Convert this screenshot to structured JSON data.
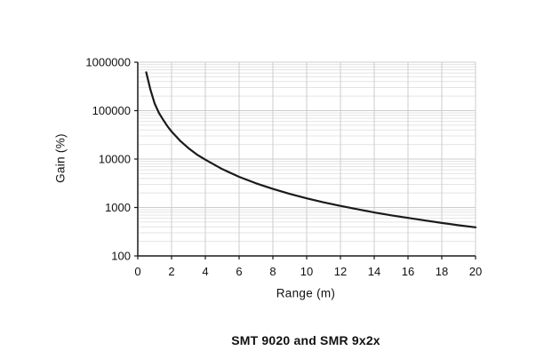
{
  "figure": {
    "title": "SMT 9020 and SMR 9x2x"
  },
  "chart_data": {
    "type": "line",
    "title": "SMT 9020 and SMR 9x2x",
    "xlabel": "Range (m)",
    "ylabel": "Gain (%)",
    "xlim": [
      0,
      20
    ],
    "ylim": [
      100,
      1000000
    ],
    "x_scale": "linear",
    "y_scale": "log",
    "x_ticks": [
      0,
      2,
      4,
      6,
      8,
      10,
      12,
      14,
      16,
      18,
      20
    ],
    "x_tick_labels": [
      "0",
      "2",
      "4",
      "6",
      "8",
      "10",
      "12",
      "14",
      "16",
      "18",
      "20"
    ],
    "y_ticks": [
      100,
      1000,
      10000,
      100000,
      1000000
    ],
    "y_tick_labels": [
      "100",
      "1000",
      "10000",
      "100000",
      "1000000"
    ],
    "grid": "major vertical every 2 m; horizontal log major + minor (2-9 per decade)",
    "legend_position": "none",
    "series": [
      {
        "name": "Gain",
        "x": [
          0.5,
          0.75,
          1,
          1.25,
          1.5,
          1.75,
          2,
          2.5,
          3,
          3.5,
          4,
          5,
          6,
          7,
          8,
          9,
          10,
          11,
          12,
          13,
          14,
          15,
          16,
          17,
          18,
          19,
          20
        ],
        "y": [
          620000,
          270000,
          140000,
          90000,
          65000,
          48000,
          37000,
          24000,
          16800,
          12400,
          9700,
          6200,
          4300,
          3160,
          2420,
          1910,
          1550,
          1280,
          1080,
          920,
          790,
          690,
          610,
          540,
          480,
          430,
          390
        ]
      }
    ],
    "colors": {
      "curve": "#1a1a1a",
      "axis": "#1a1a1a",
      "grid_major": "#cccccc",
      "grid_minor": "#e4e4e4",
      "background": "#ffffff",
      "text": "#111111"
    }
  }
}
